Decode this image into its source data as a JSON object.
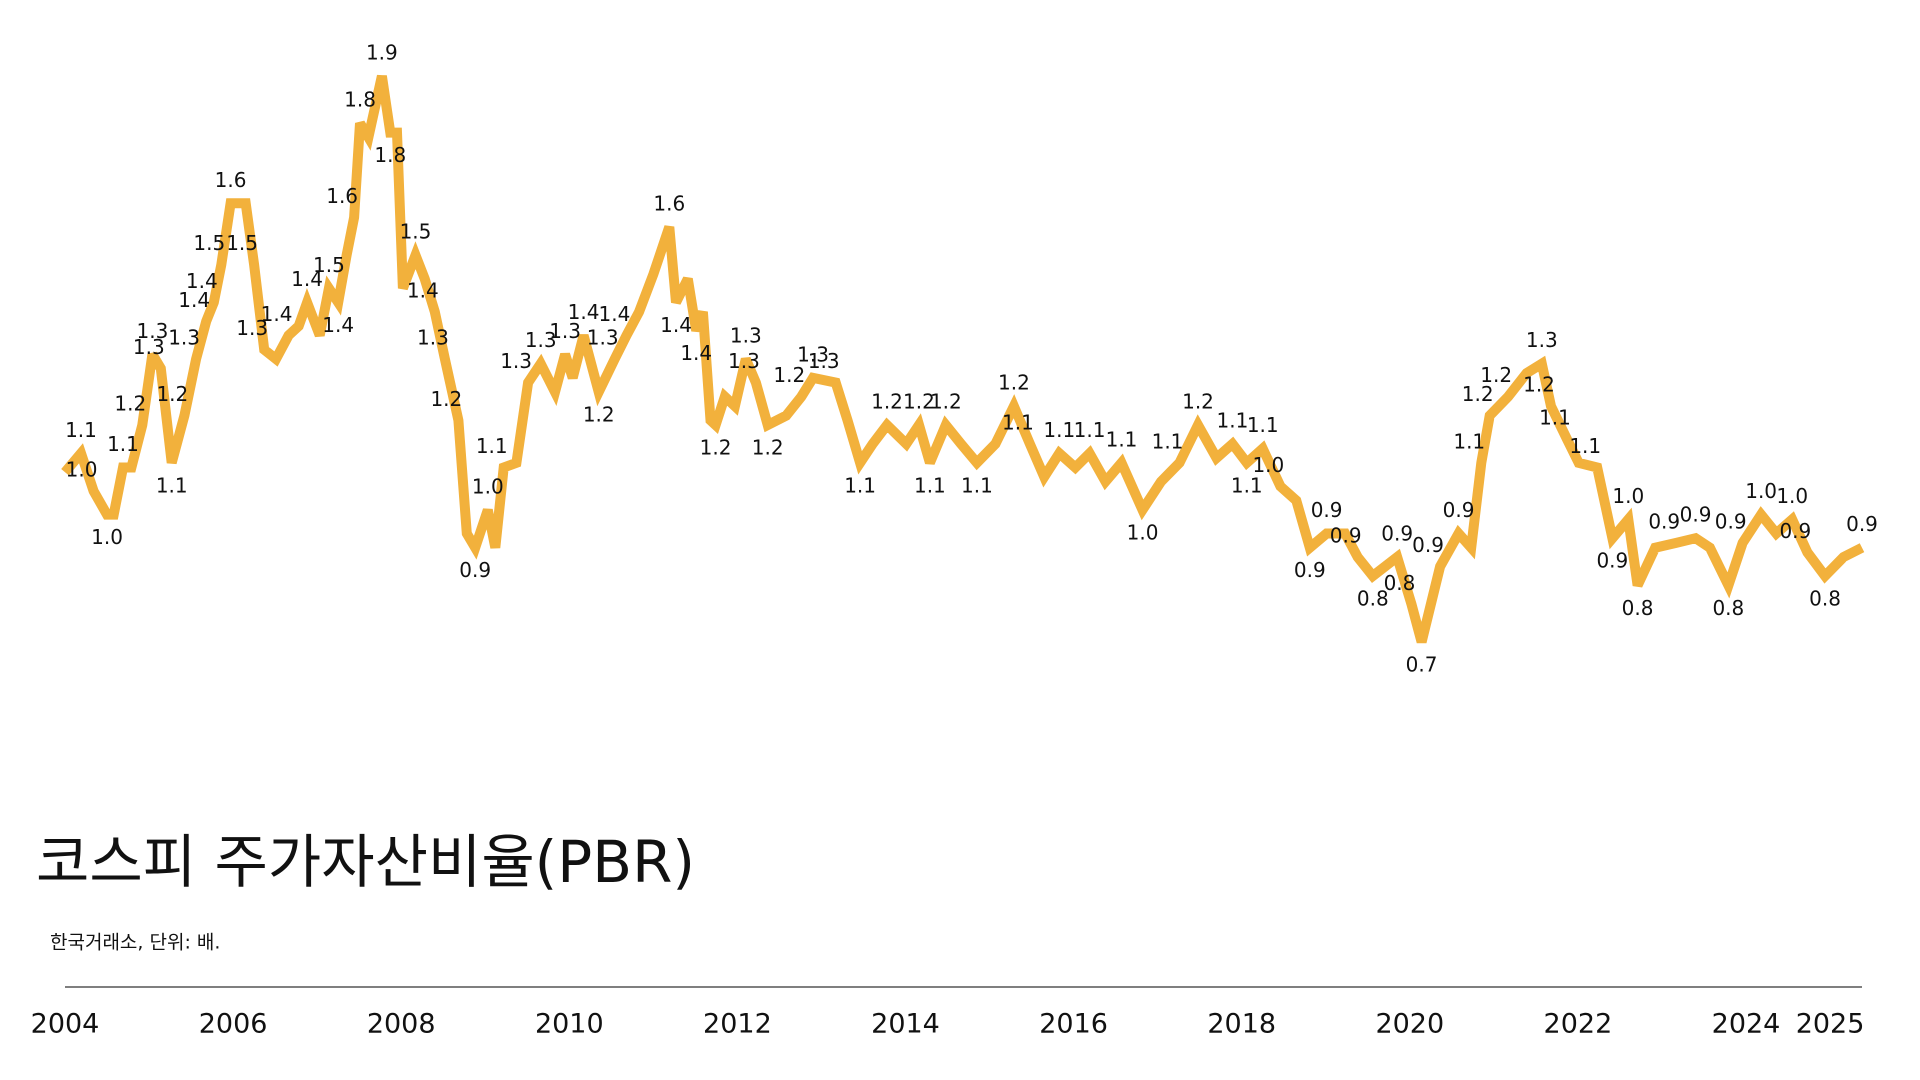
{
  "chart_data": {
    "type": "line",
    "title": "코스피 주가자산비율(PBR)",
    "subtitle": "한국거래소, 단위: 배.",
    "color": "#f2b13c",
    "x": [
      2004.0,
      2004.19,
      2004.34,
      2004.5,
      2004.58,
      2004.69,
      2004.79,
      2004.92,
      2005.04,
      2005.14,
      2005.27,
      2005.42,
      2005.56,
      2005.68,
      2005.77,
      2005.86,
      2005.97,
      2006.15,
      2006.25,
      2006.37,
      2006.51,
      2006.66,
      2006.78,
      2006.88,
      2007.03,
      2007.14,
      2007.25,
      2007.35,
      2007.44,
      2007.51,
      2007.61,
      2007.77,
      2007.87,
      2007.95,
      2008.02,
      2008.17,
      2008.28,
      2008.4,
      2008.52,
      2008.68,
      2008.78,
      2008.88,
      2009.03,
      2009.12,
      2009.22,
      2009.37,
      2009.51,
      2009.66,
      2009.83,
      2009.95,
      2010.04,
      2010.17,
      2010.35,
      2010.54,
      2010.68,
      2010.83,
      2011.0,
      2011.19,
      2011.27,
      2011.41,
      2011.51,
      2011.59,
      2011.68,
      2011.74,
      2011.85,
      2011.97,
      2012.1,
      2012.22,
      2012.36,
      2012.58,
      2012.76,
      2012.9,
      2013.17,
      2013.31,
      2013.46,
      2013.61,
      2013.78,
      2014.01,
      2014.16,
      2014.29,
      2014.48,
      2014.66,
      2014.85,
      2015.07,
      2015.29,
      2015.48,
      2015.65,
      2015.83,
      2016.02,
      2016.19,
      2016.38,
      2016.57,
      2016.82,
      2017.04,
      2017.26,
      2017.48,
      2017.7,
      2017.89,
      2018.06,
      2018.25,
      2018.46,
      2018.65,
      2018.81,
      2019.01,
      2019.23,
      2019.38,
      2019.56,
      2019.85,
      2020.02,
      2020.14,
      2020.36,
      2020.58,
      2020.73,
      2020.85,
      2020.95,
      2021.17,
      2021.39,
      2021.57,
      2021.68,
      2021.87,
      2022.01,
      2022.23,
      2022.41,
      2022.6,
      2022.71,
      2022.92,
      2023.17,
      2023.4,
      2023.57,
      2023.79,
      2023.96,
      2024.18,
      2024.36,
      2024.55,
      2024.73,
      2024.94,
      2025.16,
      2025.38
    ],
    "values": [
      1.06,
      1.1,
      1.02,
      0.97,
      0.97,
      1.07,
      1.07,
      1.16,
      1.31,
      1.28,
      1.08,
      1.18,
      1.3,
      1.38,
      1.42,
      1.5,
      1.63,
      1.63,
      1.5,
      1.32,
      1.3,
      1.35,
      1.37,
      1.42,
      1.35,
      1.45,
      1.42,
      1.52,
      1.6,
      1.8,
      1.77,
      1.9,
      1.78,
      1.78,
      1.45,
      1.52,
      1.47,
      1.4,
      1.3,
      1.17,
      0.93,
      0.9,
      0.98,
      0.9,
      1.07,
      1.08,
      1.25,
      1.29,
      1.23,
      1.31,
      1.26,
      1.35,
      1.23,
      1.3,
      1.35,
      1.4,
      1.48,
      1.58,
      1.42,
      1.47,
      1.36,
      1.4,
      1.17,
      1.16,
      1.22,
      1.2,
      1.3,
      1.25,
      1.16,
      1.18,
      1.22,
      1.26,
      1.25,
      1.17,
      1.08,
      1.12,
      1.16,
      1.12,
      1.16,
      1.08,
      1.16,
      1.12,
      1.08,
      1.12,
      1.2,
      1.12,
      1.05,
      1.1,
      1.07,
      1.1,
      1.04,
      1.08,
      0.98,
      1.04,
      1.08,
      1.16,
      1.09,
      1.12,
      1.08,
      1.11,
      1.03,
      1.0,
      0.9,
      0.93,
      0.93,
      0.88,
      0.84,
      0.88,
      0.78,
      0.7,
      0.86,
      0.93,
      0.9,
      1.08,
      1.18,
      1.22,
      1.27,
      1.29,
      1.2,
      1.13,
      1.08,
      1.07,
      0.92,
      0.96,
      0.82,
      0.9,
      0.91,
      0.92,
      0.9,
      0.82,
      0.91,
      0.97,
      0.93,
      0.96,
      0.89,
      0.84,
      0.88,
      0.9
    ],
    "value_labels": [
      null,
      "1.1",
      "1.0",
      "1.0",
      null,
      "1.1",
      null,
      "1.2",
      "1.3",
      "1.3",
      "1.1",
      "1.2",
      "1.3",
      "1.4",
      "1.4",
      "1.5",
      "1.6",
      null,
      "1.5",
      "1.3",
      null,
      "1.4",
      null,
      "1.4",
      null,
      "1.5",
      "1.4",
      null,
      "1.6",
      "1.8",
      null,
      "1.9",
      "1.8",
      null,
      null,
      "1.5",
      null,
      "1.4",
      "1.3",
      "1.2",
      null,
      "0.9",
      "1.0",
      null,
      "1.1",
      null,
      "1.3",
      "1.3",
      null,
      "1.3",
      null,
      "1.4",
      "1.2",
      "1.3",
      "1.4",
      null,
      null,
      "1.6",
      "1.4",
      null,
      "1.4",
      null,
      null,
      "1.2",
      null,
      null,
      "1.3",
      "1.3",
      "1.2",
      null,
      "1.2",
      "1.3",
      "1.3",
      null,
      "1.1",
      null,
      "1.2",
      null,
      "1.2",
      "1.1",
      "1.2",
      null,
      "1.1",
      null,
      "1.2",
      "1.1",
      null,
      "1.1",
      null,
      "1.1",
      null,
      "1.1",
      "1.0",
      null,
      "1.1",
      "1.2",
      null,
      "1.1",
      "1.1",
      "1.1",
      "1.0",
      null,
      "0.9",
      "0.9",
      null,
      "0.9",
      "0.8",
      "0.9",
      "0.8",
      "0.7",
      "0.9",
      "0.9",
      null,
      "1.1",
      "1.2",
      "1.2",
      null,
      "1.3",
      "1.2",
      "1.1",
      null,
      "1.1",
      "0.9",
      "1.0",
      "0.8",
      null,
      "0.9",
      "0.9",
      null,
      "0.8",
      "0.9",
      "1.0",
      null,
      "1.0",
      "0.9",
      "0.8",
      null,
      "0.9"
    ],
    "xlim": [
      2004,
      2025.38
    ],
    "xticks": [
      2004,
      2006,
      2008,
      2010,
      2012,
      2014,
      2016,
      2018,
      2020,
      2022,
      2024,
      2025
    ]
  }
}
